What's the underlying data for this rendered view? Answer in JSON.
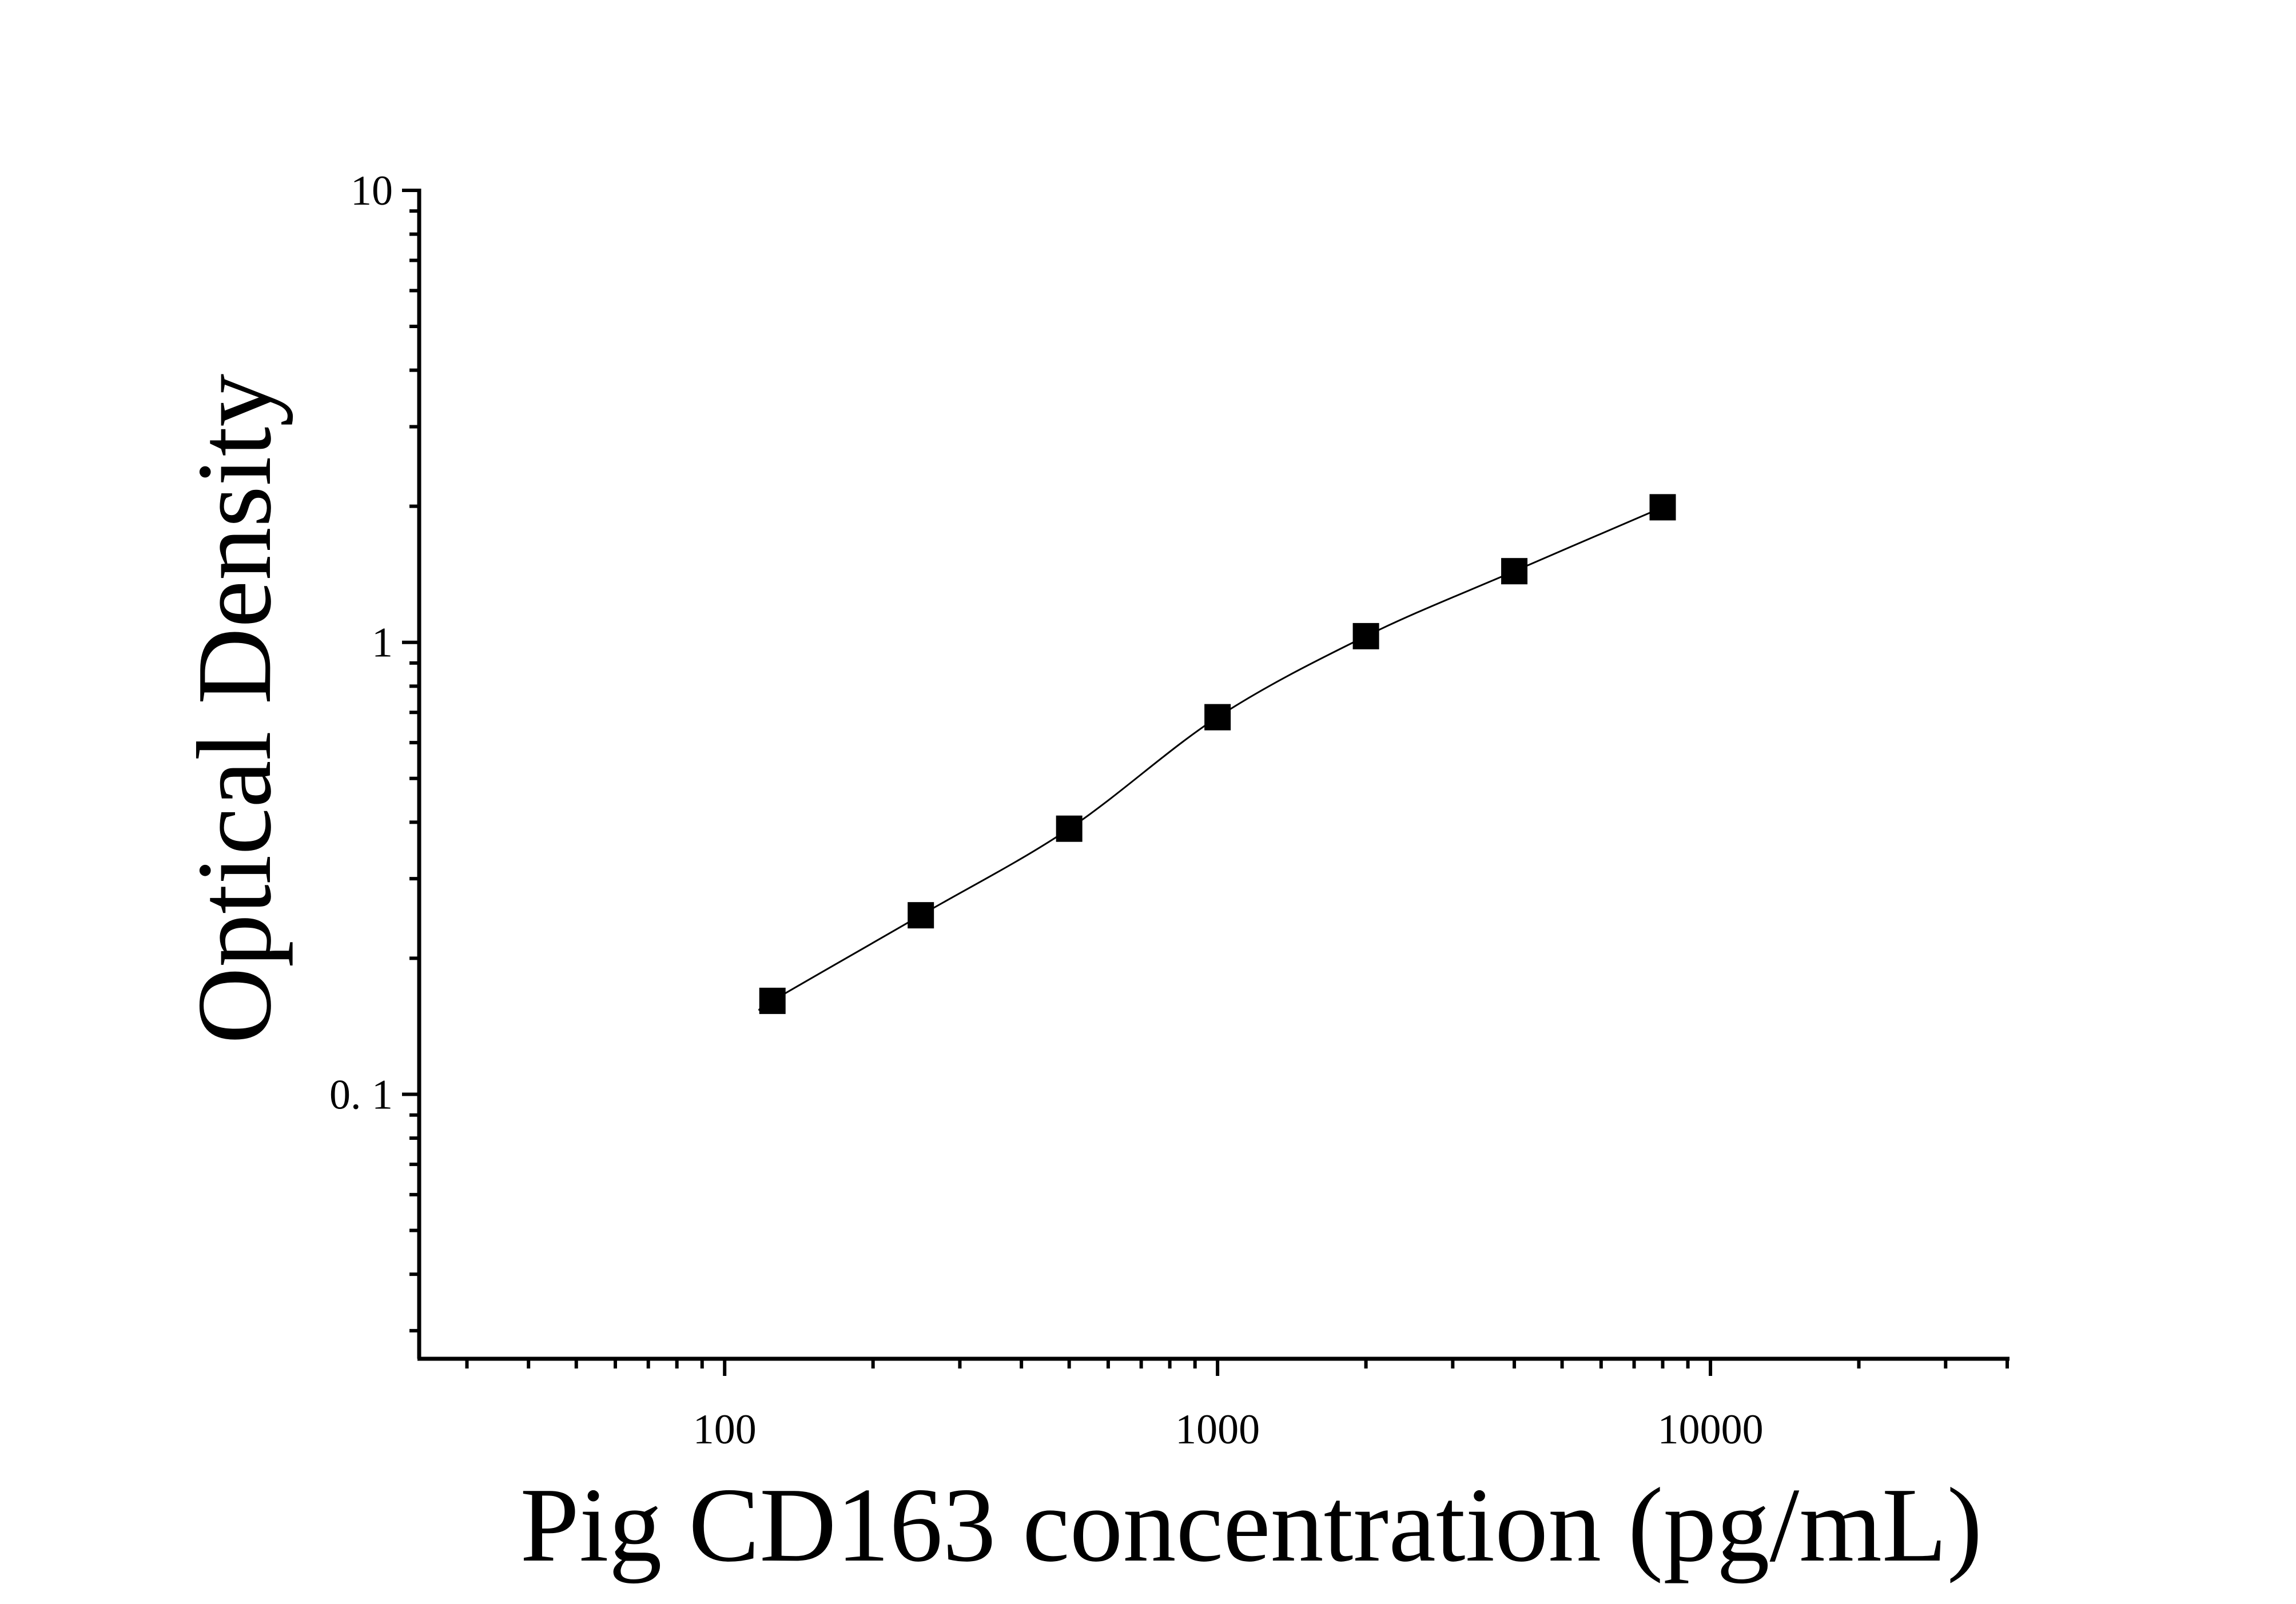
{
  "chart_data": {
    "type": "scatter",
    "title": "",
    "xlabel": "Pig CD163 concentration (pg/mL)",
    "ylabel": "Optical Density",
    "x_scale": "log",
    "y_scale": "log",
    "xlim": [
      24,
      40000
    ],
    "ylim": [
      0.026,
      10
    ],
    "x_tick_values": [
      100,
      1000,
      10000
    ],
    "x_tick_labels": [
      "100",
      "1000",
      "10000"
    ],
    "y_tick_values": [
      0.1,
      1,
      10
    ],
    "y_tick_labels": [
      "0. 1",
      "1",
      "10"
    ],
    "grid": false,
    "legend": "none",
    "marker": "square",
    "marker_color": "#000000",
    "fit_line": "smooth curve through points",
    "series": [
      {
        "x": [
          125,
          250,
          500,
          1000,
          2000,
          4000,
          8000
        ],
        "y": [
          0.161,
          0.249,
          0.387,
          0.683,
          1.032,
          1.437,
          1.99
        ]
      }
    ]
  }
}
